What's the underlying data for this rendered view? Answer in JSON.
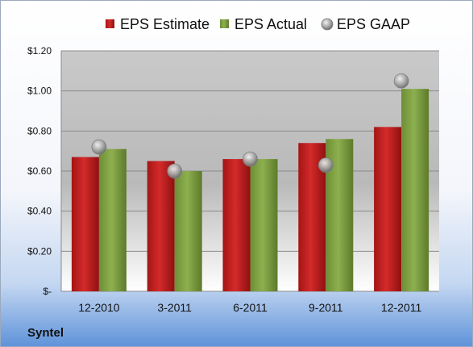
{
  "company": "Syntel",
  "colors": {
    "estimate": "#d42a2a",
    "actual": "#8db04f",
    "gaap": "#a6a6a6"
  },
  "chart_data": {
    "type": "bar",
    "categories": [
      "12-2010",
      "3-2011",
      "6-2011",
      "9-2011",
      "12-2011"
    ],
    "series": [
      {
        "name": "EPS Estimate",
        "kind": "bar",
        "values": [
          0.67,
          0.65,
          0.66,
          0.74,
          0.82
        ]
      },
      {
        "name": "EPS Actual",
        "kind": "bar",
        "values": [
          0.71,
          0.6,
          0.66,
          0.76,
          1.01
        ]
      },
      {
        "name": "EPS GAAP",
        "kind": "scatter",
        "values": [
          0.72,
          0.6,
          0.66,
          0.63,
          1.05
        ]
      }
    ],
    "ylim": [
      0,
      1.2
    ],
    "yticks": [
      {
        "value": 0,
        "label": "$-"
      },
      {
        "value": 0.2,
        "label": "$0.20"
      },
      {
        "value": 0.4,
        "label": "$0.40"
      },
      {
        "value": 0.6,
        "label": "$0.60"
      },
      {
        "value": 0.8,
        "label": "$0.80"
      },
      {
        "value": 1.0,
        "label": "$1.00"
      },
      {
        "value": 1.2,
        "label": "$1.20"
      }
    ],
    "grid": true,
    "legend": "top-center",
    "title": "",
    "xlabel": "",
    "ylabel": ""
  }
}
